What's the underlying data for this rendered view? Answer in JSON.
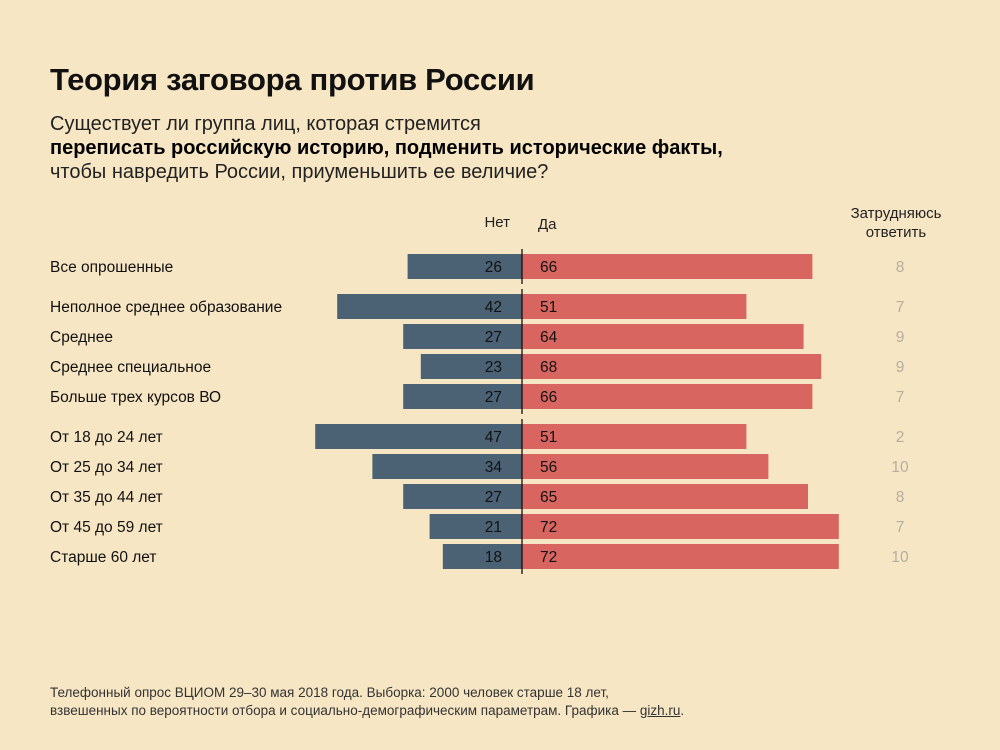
{
  "title": "Теория заговора против России",
  "subtitle": {
    "line1": "Существует ли группа лиц, которая стремится",
    "line2": "переписать российскую историю, подменить исторические факты,",
    "line3": "чтобы навредить России, приуменьшить ее величие?"
  },
  "columns": {
    "no": "Нет",
    "yes": "Да",
    "unsure_line1": "Затрудняюсь",
    "unsure_line2": "ответить"
  },
  "colors": {
    "background": "#f7e6c4",
    "no_bar": "#4b6275",
    "yes_bar": "#d96561",
    "unsure_text": "#b5aea1",
    "axis": "#111111"
  },
  "chart_data": {
    "type": "bar",
    "orientation": "horizontal-diverging",
    "categories": [
      "Все опрошенные",
      "Неполное среднее образование",
      "Среднее",
      "Среднее специальное",
      "Больше трех курсов ВО",
      "От 18 до 24 лет",
      "От 25 до 34 лет",
      "От 35 до 44 лет",
      "От 45 до 59 лет",
      "Старше 60 лет"
    ],
    "groups": [
      [
        0
      ],
      [
        1,
        2,
        3,
        4
      ],
      [
        5,
        6,
        7,
        8,
        9
      ]
    ],
    "series": [
      {
        "name": "Нет",
        "values": [
          26,
          42,
          27,
          23,
          27,
          47,
          34,
          27,
          21,
          18
        ]
      },
      {
        "name": "Да",
        "values": [
          66,
          51,
          64,
          68,
          66,
          51,
          56,
          65,
          72,
          72
        ]
      },
      {
        "name": "Затрудняюсь ответить",
        "values": [
          8,
          7,
          9,
          9,
          7,
          2,
          10,
          8,
          7,
          10
        ]
      }
    ],
    "unit": "%",
    "grid": false
  },
  "footer": {
    "line1": "Телефонный опрос ВЦИОМ 29–30 мая 2018 года. Выборка: 2000 человек старше 18 лет,",
    "line2": "взвешенных по вероятности отбора и социально-демографическим параметрам. Графика — ",
    "link": "gizh.ru",
    "end": "."
  }
}
